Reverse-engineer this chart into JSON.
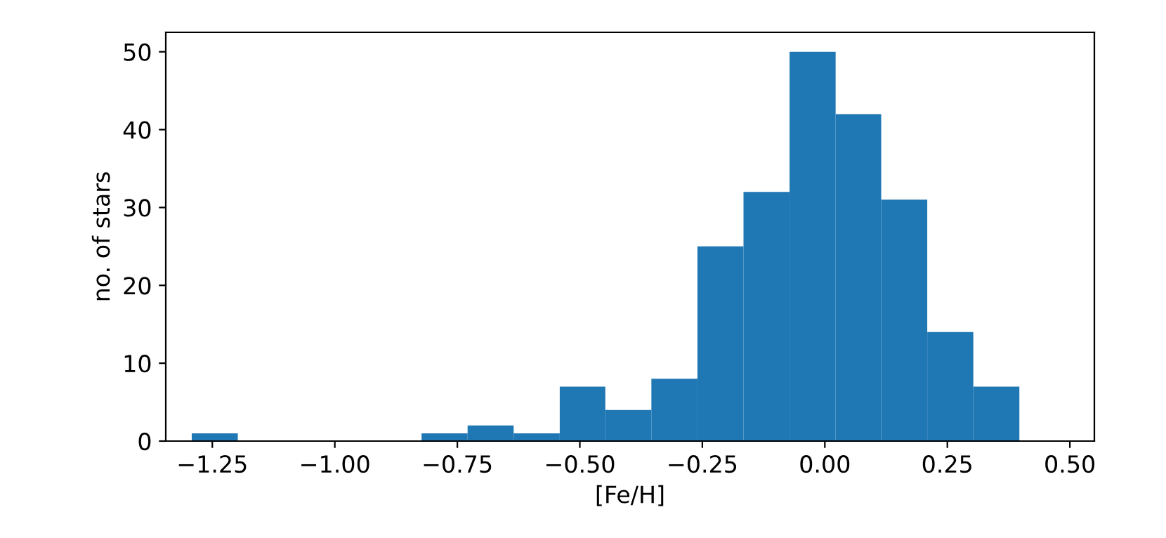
{
  "chart_data": {
    "type": "histogram",
    "xlabel": "[Fe/H]",
    "ylabel": "no. of stars",
    "color": "#1f77b4",
    "bins": [
      -1.292,
      -1.198,
      -0.823,
      -0.729,
      -0.635,
      -0.541,
      -0.448,
      -0.354,
      -0.26,
      -0.166,
      -0.072,
      0.022,
      0.115,
      0.209,
      0.303,
      0.397
    ],
    "values": [
      1,
      0,
      1,
      2,
      1,
      7,
      4,
      8,
      25,
      32,
      50,
      42,
      31,
      14,
      7
    ],
    "xlim": [
      -1.345,
      0.55
    ],
    "ylim": [
      0,
      52.5
    ],
    "xticks": [
      {
        "value": -1.25,
        "label": "−1.25"
      },
      {
        "value": -1.0,
        "label": "−1.00"
      },
      {
        "value": -0.75,
        "label": "−0.75"
      },
      {
        "value": -0.5,
        "label": "−0.50"
      },
      {
        "value": -0.25,
        "label": "−0.25"
      },
      {
        "value": 0.0,
        "label": "0.00"
      },
      {
        "value": 0.25,
        "label": "0.25"
      },
      {
        "value": 0.5,
        "label": "0.50"
      }
    ],
    "yticks": [
      0,
      10,
      20,
      30,
      40,
      50
    ],
    "grid": false
  }
}
